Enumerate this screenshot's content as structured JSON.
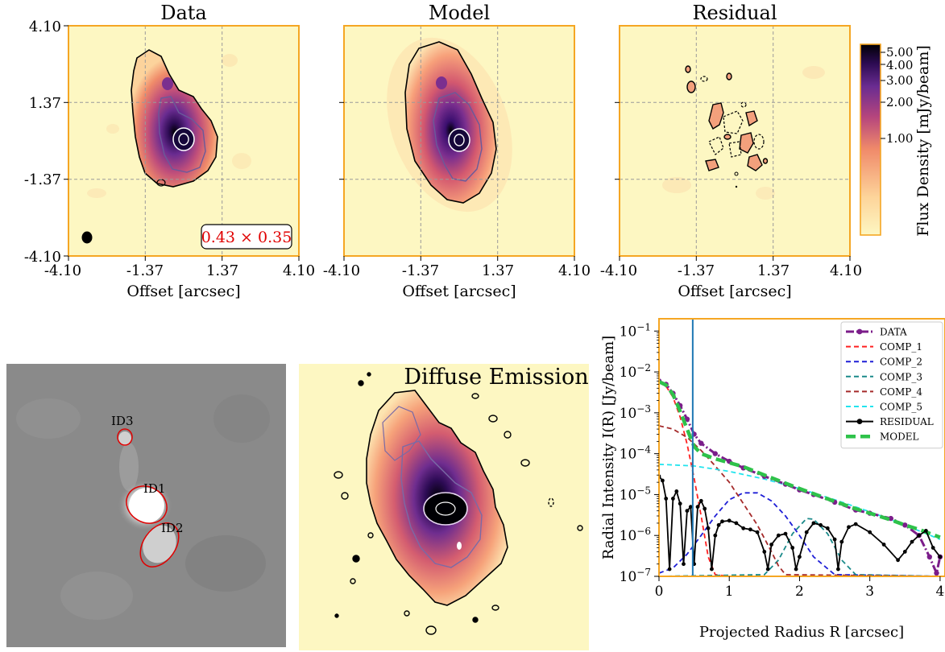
{
  "titles": {
    "data": "Data",
    "model": "Model",
    "residual": "Residual",
    "diffuse": "Diffuse Emission"
  },
  "colors": {
    "frame": "#f5a623",
    "background": "#fdf7c2",
    "magma_light": "#fdd9a0",
    "magma_mid": "#e07a5f",
    "magma_purple": "#6a2c91",
    "magma_dark": "#000004",
    "grid": "#9a9a9a",
    "beam_label": "#e00000"
  },
  "map_axes": {
    "xlabel": "Offset [arcsec]",
    "xticks": [
      "-4.10",
      "-1.37",
      "1.37",
      "4.10"
    ],
    "yticks": [
      "4.10",
      "1.37",
      "-1.37",
      "-4.10"
    ]
  },
  "beam_label": "0.43 × 0.35",
  "colorbar": {
    "label": "Flux Density [mJy/beam]",
    "ticks": [
      "5.00",
      "4.00",
      "3.00",
      "2.00",
      "1.00"
    ]
  },
  "source_labels": [
    "ID3",
    "ID1",
    "ID2"
  ],
  "chart_data": {
    "type": "line",
    "xlabel": "Projected Radius R [arcsec]",
    "ylabel": "Radial Intensity I(R) [Jy/beam]",
    "xlim": [
      0,
      4
    ],
    "ylim": [
      1e-07,
      0.2
    ],
    "yscale": "log",
    "xticks": [
      "0",
      "1",
      "2",
      "3",
      "4"
    ],
    "yticks": [
      "10^-7",
      "10^-6",
      "10^-5",
      "10^-4",
      "10^-3",
      "10^-2",
      "10^-1"
    ],
    "vline_x": 0.48,
    "legend_position": "top-right",
    "series": [
      {
        "name": "DATA",
        "color": "#7b1d8a",
        "style": "dashdot-marker",
        "x": [
          0,
          0.1,
          0.2,
          0.3,
          0.4,
          0.5,
          0.6,
          0.8,
          1.0,
          1.2,
          1.5,
          1.8,
          2.0,
          2.2,
          2.5,
          2.8,
          3.0,
          3.3,
          3.5,
          3.7,
          3.85,
          3.95,
          4.0
        ],
        "y": [
          0.006,
          0.005,
          0.003,
          0.0015,
          0.0007,
          0.0003,
          0.00018,
          0.0001,
          6.5e-05,
          4.5e-05,
          2.8e-05,
          1.8e-05,
          1.3e-05,
          1e-05,
          6.5e-06,
          4.2e-06,
          3.5e-06,
          2.6e-06,
          1.8e-06,
          1e-06,
          3e-07,
          1.2e-07,
          3e-07
        ]
      },
      {
        "name": "COMP_1",
        "color": "#ff2020",
        "style": "dashed",
        "x": [
          0,
          0.1,
          0.2,
          0.3,
          0.4,
          0.5,
          0.6,
          0.7,
          0.8,
          1.0,
          4.0
        ],
        "y": [
          0.0055,
          0.0045,
          0.0024,
          0.0008,
          0.00017,
          2.5e-05,
          3e-06,
          3e-07,
          1.1e-07,
          1e-07,
          1e-07
        ]
      },
      {
        "name": "COMP_2",
        "color": "#1f1fd6",
        "style": "dashed",
        "x": [
          0,
          0.2,
          0.4,
          0.6,
          0.8,
          1.0,
          1.2,
          1.4,
          1.6,
          1.8,
          2.0,
          2.2,
          2.5,
          4.0
        ],
        "y": [
          1.2e-07,
          1.6e-07,
          3.5e-07,
          1e-06,
          3e-06,
          7.5e-06,
          1.1e-05,
          1.1e-05,
          7e-06,
          3e-06,
          1e-06,
          3e-07,
          1.1e-07,
          1e-07
        ]
      },
      {
        "name": "COMP_3",
        "color": "#1a8a8a",
        "style": "dashed",
        "x": [
          0,
          1.5,
          1.7,
          1.9,
          2.1,
          2.2,
          2.4,
          2.6,
          2.8,
          4.0
        ],
        "y": [
          1e-07,
          1.1e-07,
          2.5e-07,
          1.1e-06,
          2.6e-06,
          2.5e-06,
          1.1e-06,
          2.5e-07,
          1.1e-07,
          1e-07
        ]
      },
      {
        "name": "COMP_4",
        "color": "#a52a2a",
        "style": "dashed",
        "x": [
          0,
          0.2,
          0.4,
          0.6,
          0.8,
          1.0,
          1.2,
          1.4,
          1.6,
          1.7,
          1.8,
          4.0
        ],
        "y": [
          0.00048,
          0.0004,
          0.00025,
          0.00012,
          5e-05,
          2e-05,
          6e-06,
          1.8e-06,
          4e-07,
          1.8e-07,
          1.1e-07,
          1e-07
        ]
      },
      {
        "name": "COMP_5",
        "color": "#22e4ee",
        "style": "dashed",
        "x": [
          0,
          0.5,
          1.0,
          1.5,
          2.0,
          2.5,
          3.0,
          3.5,
          4.0
        ],
        "y": [
          5.5e-05,
          5e-05,
          3.7e-05,
          2.4e-05,
          1.4e-05,
          7.5e-06,
          3.8e-06,
          1.8e-06,
          8e-07
        ]
      },
      {
        "name": "RESIDUAL",
        "color": "#000000",
        "style": "solid-marker",
        "x": [
          0,
          0.05,
          0.1,
          0.15,
          0.2,
          0.25,
          0.3,
          0.35,
          0.4,
          0.45,
          0.5,
          0.55,
          0.6,
          0.65,
          0.7,
          0.75,
          0.8,
          0.85,
          0.9,
          1.0,
          1.1,
          1.2,
          1.3,
          1.4,
          1.5,
          1.55,
          1.6,
          1.7,
          1.8,
          1.9,
          1.95,
          2.0,
          2.1,
          2.2,
          2.3,
          2.4,
          2.5,
          2.55,
          2.6,
          2.7,
          2.8,
          3.0,
          3.2,
          3.4,
          3.5,
          3.6,
          3.7,
          3.8,
          3.9,
          4.0
        ],
        "y": [
          2.8e-05,
          2.2e-05,
          8e-06,
          1.5e-07,
          8e-06,
          1.2e-05,
          6e-06,
          2e-07,
          4e-06,
          5e-06,
          2e-07,
          5e-06,
          7e-06,
          4.5e-06,
          1.5e-06,
          1.5e-07,
          1e-06,
          1.8e-06,
          2.2e-06,
          2.3e-06,
          2e-06,
          1.5e-06,
          1.4e-06,
          1.2e-06,
          4e-07,
          1.5e-07,
          6e-07,
          1e-06,
          1.1e-06,
          5e-07,
          1.5e-07,
          3e-07,
          1.2e-06,
          2e-06,
          1.8e-06,
          1.5e-06,
          8e-07,
          1.5e-07,
          7e-07,
          1.6e-06,
          1.9e-06,
          1.2e-06,
          6e-07,
          2.5e-07,
          4e-07,
          7e-07,
          1e-06,
          1.3e-06,
          5e-07,
          3e-07
        ]
      },
      {
        "name": "MODEL",
        "color": "#2ec24a",
        "style": "thick-dashed",
        "x": [
          0,
          0.1,
          0.2,
          0.3,
          0.4,
          0.5,
          0.6,
          0.8,
          1.0,
          1.2,
          1.5,
          1.8,
          2.0,
          2.2,
          2.5,
          2.8,
          3.0,
          3.3,
          3.5,
          3.7,
          4.0
        ],
        "y": [
          0.0058,
          0.0048,
          0.0028,
          0.0011,
          0.0004,
          0.00015,
          0.0001,
          7.5e-05,
          6e-05,
          4.8e-05,
          3e-05,
          1.9e-05,
          1.4e-05,
          1.05e-05,
          6.8e-06,
          4.5e-06,
          3.5e-06,
          2.4e-06,
          1.8e-06,
          1.4e-06,
          9e-07
        ]
      }
    ]
  }
}
